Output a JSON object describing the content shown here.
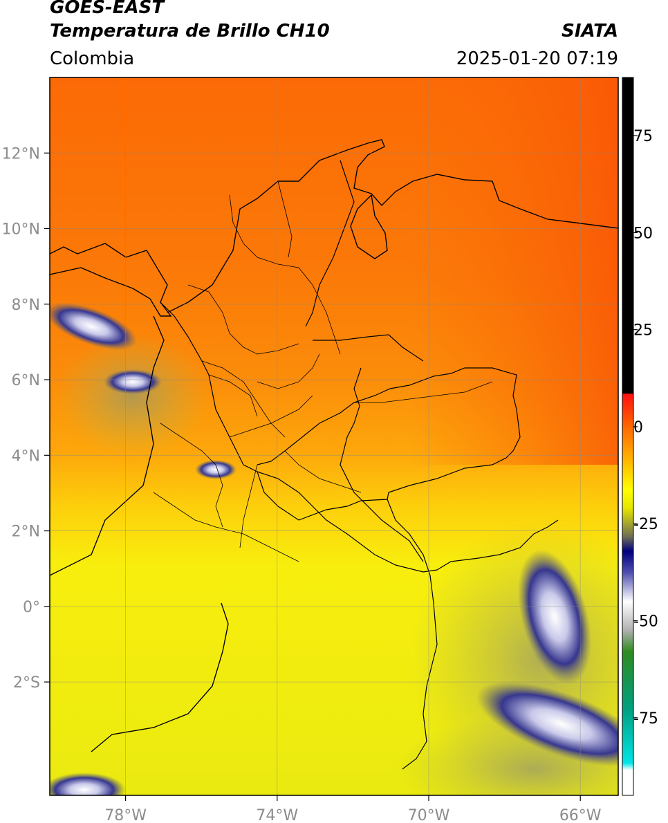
{
  "header": {
    "satellite": "GOES-EAST",
    "product": "Temperatura de Brillo CH10",
    "source": "SIATA",
    "region": "Colombia",
    "timestamp": "2025-01-20 07:19"
  },
  "map": {
    "lon_range": [
      -80,
      -65
    ],
    "lat_range": [
      -5,
      14
    ],
    "lon_ticks": [
      -78,
      -74,
      -70,
      -66
    ],
    "lon_tick_labels": [
      "78°W",
      "74°W",
      "70°W",
      "66°W"
    ],
    "lat_ticks": [
      12,
      10,
      8,
      6,
      4,
      2,
      0,
      -2
    ],
    "lat_tick_labels": [
      "12°N",
      "10°N",
      "8°N",
      "6°N",
      "4°N",
      "2°N",
      "0°",
      "2°S"
    ],
    "grid": true
  },
  "colorbar": {
    "range": [
      -95,
      90
    ],
    "ticks": [
      75,
      50,
      25,
      0,
      -25,
      -50,
      -75
    ],
    "tick_labels": [
      "75",
      "50",
      "25",
      "0",
      "-25",
      "-50",
      "-75"
    ]
  }
}
